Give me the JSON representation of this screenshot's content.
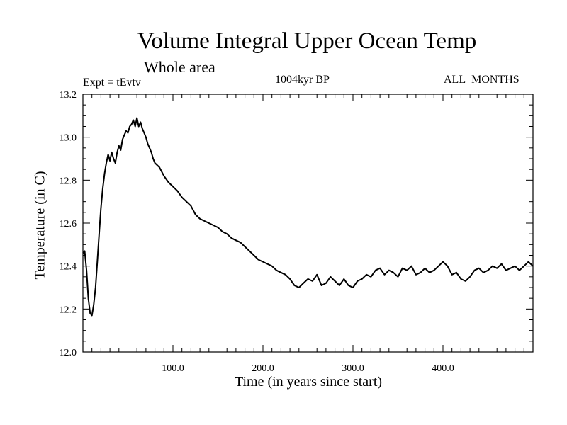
{
  "chart_data": {
    "type": "line",
    "title": "Volume Integral Upper Ocean Temp",
    "subtitle": "Whole area",
    "annotations": {
      "experiment": "Expt = tEvtv",
      "period": "1004kyr BP",
      "months": "ALL_MONTHS"
    },
    "xlabel": "Time (in years since start)",
    "ylabel": "Temperature (in C)",
    "xlim": [
      0,
      500
    ],
    "ylim": [
      12.0,
      13.2
    ],
    "x_ticks": [
      100,
      200,
      300,
      400
    ],
    "x_tick_labels": [
      "100.0",
      "200.0",
      "300.0",
      "400.0"
    ],
    "y_ticks": [
      12.0,
      12.2,
      12.4,
      12.6,
      12.8,
      13.0,
      13.2
    ],
    "y_tick_labels": [
      "12.0",
      "12.2",
      "12.4",
      "12.6",
      "12.8",
      "13.0",
      "13.2"
    ],
    "series": [
      {
        "name": "Volume integral upper ocean temperature",
        "x": [
          0,
          2,
          4,
          6,
          8,
          10,
          12,
          14,
          16,
          18,
          20,
          22,
          24,
          26,
          28,
          30,
          32,
          34,
          36,
          38,
          40,
          42,
          44,
          46,
          48,
          50,
          52,
          54,
          56,
          58,
          60,
          62,
          64,
          66,
          68,
          70,
          72,
          74,
          76,
          78,
          80,
          85,
          90,
          95,
          100,
          105,
          110,
          115,
          120,
          125,
          130,
          135,
          140,
          145,
          150,
          155,
          160,
          165,
          170,
          175,
          180,
          185,
          190,
          195,
          200,
          205,
          210,
          215,
          220,
          225,
          230,
          235,
          240,
          245,
          250,
          255,
          260,
          265,
          270,
          275,
          280,
          285,
          290,
          295,
          300,
          305,
          310,
          315,
          320,
          325,
          330,
          335,
          340,
          345,
          350,
          355,
          360,
          365,
          370,
          375,
          380,
          385,
          390,
          395,
          400,
          405,
          410,
          415,
          420,
          425,
          430,
          435,
          440,
          445,
          450,
          455,
          460,
          465,
          470,
          475,
          480,
          485,
          490,
          495,
          500
        ],
        "y": [
          12.46,
          12.47,
          12.38,
          12.25,
          12.18,
          12.17,
          12.22,
          12.3,
          12.42,
          12.55,
          12.67,
          12.76,
          12.83,
          12.88,
          12.92,
          12.89,
          12.93,
          12.9,
          12.88,
          12.93,
          12.96,
          12.94,
          12.99,
          13.01,
          13.03,
          13.02,
          13.05,
          13.06,
          13.08,
          13.05,
          13.09,
          13.05,
          13.07,
          13.04,
          13.02,
          13.0,
          12.97,
          12.95,
          12.93,
          12.9,
          12.88,
          12.86,
          12.82,
          12.79,
          12.77,
          12.75,
          12.72,
          12.7,
          12.68,
          12.64,
          12.62,
          12.61,
          12.6,
          12.59,
          12.58,
          12.56,
          12.55,
          12.53,
          12.52,
          12.51,
          12.49,
          12.47,
          12.45,
          12.43,
          12.42,
          12.41,
          12.4,
          12.38,
          12.37,
          12.36,
          12.34,
          12.31,
          12.3,
          12.32,
          12.34,
          12.33,
          12.36,
          12.31,
          12.32,
          12.35,
          12.33,
          12.31,
          12.34,
          12.31,
          12.3,
          12.33,
          12.34,
          12.36,
          12.35,
          12.38,
          12.39,
          12.36,
          12.38,
          12.37,
          12.35,
          12.39,
          12.38,
          12.4,
          12.36,
          12.37,
          12.39,
          12.37,
          12.38,
          12.4,
          12.42,
          12.4,
          12.36,
          12.37,
          12.34,
          12.33,
          12.35,
          12.38,
          12.39,
          12.37,
          12.38,
          12.4,
          12.39,
          12.41,
          12.38,
          12.39,
          12.4,
          12.38,
          12.4,
          12.42,
          12.4
        ]
      }
    ]
  }
}
